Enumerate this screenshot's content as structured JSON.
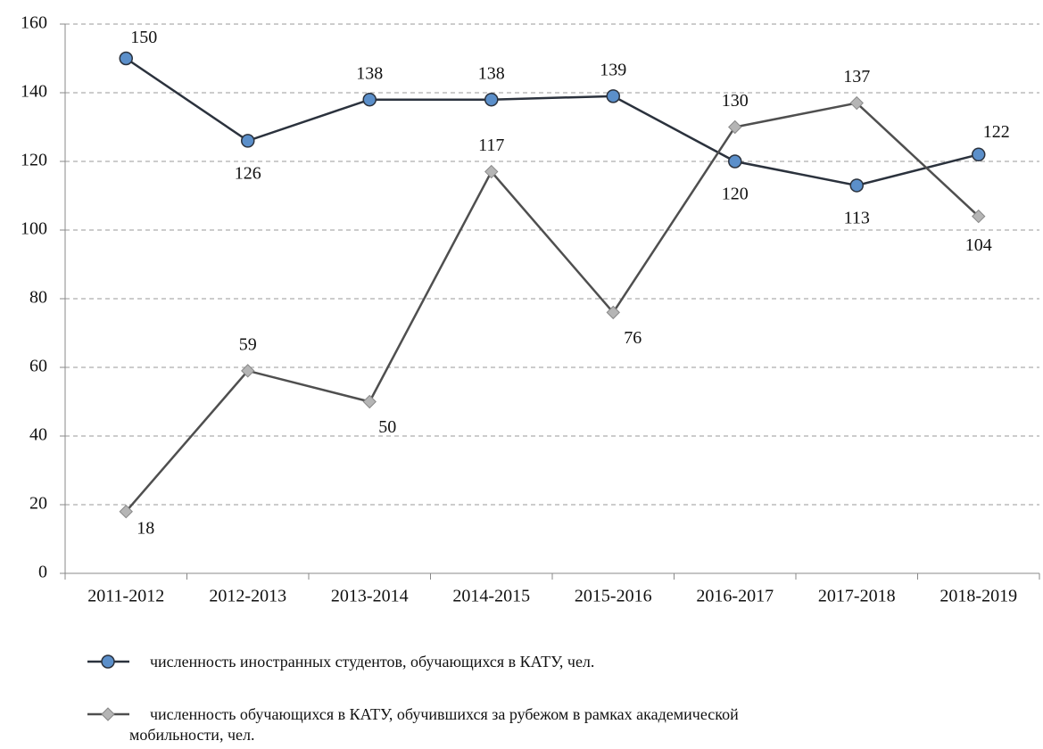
{
  "chart_data": {
    "type": "line",
    "categories": [
      "2011-2012",
      "2012-2013",
      "2013-2014",
      "2014-2015",
      "2015-2016",
      "2016-2017",
      "2017-2018",
      "2018-2019"
    ],
    "series": [
      {
        "name": "численность иностранных студентов, обучающихся  в КАТУ,  чел.",
        "color": "#2b323d",
        "marker": "circle",
        "marker_color": "#5b8fca",
        "values": [
          150,
          126,
          138,
          138,
          139,
          120,
          113,
          122
        ]
      },
      {
        "name": "численность обучающихся  в КАТУ, обучившихся  за рубежом  в рамках  академической мобильности, чел.",
        "color": "#4f4f4f",
        "marker": "diamond",
        "marker_color": "#b5b5b5",
        "values": [
          18,
          59,
          50,
          117,
          76,
          130,
          137,
          104
        ]
      }
    ],
    "ylim": [
      0,
      160
    ],
    "yticks": [
      0,
      20,
      40,
      60,
      80,
      100,
      120,
      140,
      160
    ],
    "grid": true,
    "data_labels": true
  }
}
